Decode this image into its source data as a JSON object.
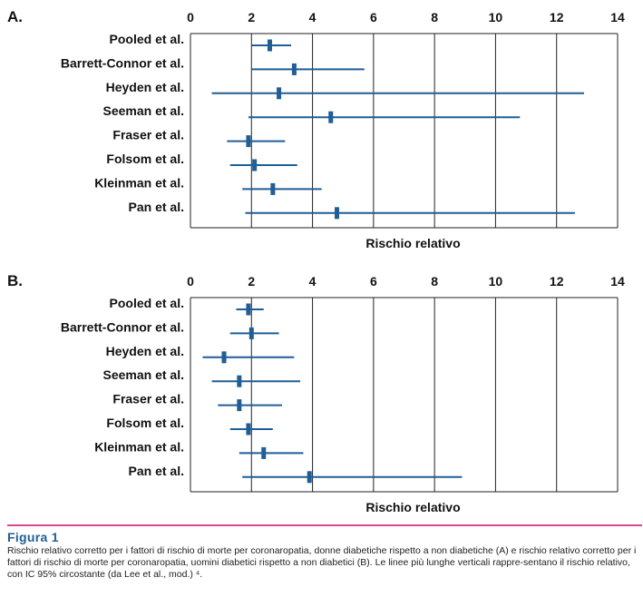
{
  "chart_data": [
    {
      "type": "forest",
      "panel_label": "A.",
      "xlabel": "Rischio relativo",
      "xlim": [
        0,
        14
      ],
      "xticks": [
        0,
        2,
        4,
        6,
        8,
        10,
        12,
        14
      ],
      "studies": [
        {
          "name": "Pooled et al.",
          "rr": 2.6,
          "ci_low": 2.0,
          "ci_high": 3.3
        },
        {
          "name": "Barrett-Connor et al.",
          "rr": 3.4,
          "ci_low": 2.0,
          "ci_high": 5.7
        },
        {
          "name": "Heyden et al.",
          "rr": 2.9,
          "ci_low": 0.7,
          "ci_high": 12.9
        },
        {
          "name": "Seeman et al.",
          "rr": 4.6,
          "ci_low": 1.9,
          "ci_high": 10.8
        },
        {
          "name": "Fraser et al.",
          "rr": 1.9,
          "ci_low": 1.2,
          "ci_high": 3.1
        },
        {
          "name": "Folsom et al.",
          "rr": 2.1,
          "ci_low": 1.3,
          "ci_high": 3.5
        },
        {
          "name": "Kleinman et al.",
          "rr": 2.7,
          "ci_low": 1.7,
          "ci_high": 4.3
        },
        {
          "name": "Pan et al.",
          "rr": 4.8,
          "ci_low": 1.8,
          "ci_high": 12.6
        }
      ]
    },
    {
      "type": "forest",
      "panel_label": "B.",
      "xlabel": "Rischio relativo",
      "xlim": [
        0,
        14
      ],
      "xticks": [
        0,
        2,
        4,
        6,
        8,
        10,
        12,
        14
      ],
      "studies": [
        {
          "name": "Pooled et al.",
          "rr": 1.9,
          "ci_low": 1.5,
          "ci_high": 2.4
        },
        {
          "name": "Barrett-Connor et al.",
          "rr": 2.0,
          "ci_low": 1.3,
          "ci_high": 2.9
        },
        {
          "name": "Heyden et al.",
          "rr": 1.1,
          "ci_low": 0.4,
          "ci_high": 3.4
        },
        {
          "name": "Seeman et al.",
          "rr": 1.6,
          "ci_low": 0.7,
          "ci_high": 3.6
        },
        {
          "name": "Fraser et al.",
          "rr": 1.6,
          "ci_low": 0.9,
          "ci_high": 3.0
        },
        {
          "name": "Folsom et al.",
          "rr": 1.9,
          "ci_low": 1.3,
          "ci_high": 2.7
        },
        {
          "name": "Kleinman et al.",
          "rr": 2.4,
          "ci_low": 1.6,
          "ci_high": 3.7
        },
        {
          "name": "Pan et al.",
          "rr": 3.9,
          "ci_low": 1.7,
          "ci_high": 8.9
        }
      ]
    }
  ],
  "colors": {
    "series": "#1f5e96",
    "gridline": "#222222",
    "caption_rule": "#d64a8a",
    "caption_title": "#1f5e96"
  },
  "caption": {
    "title": "Figura 1",
    "text": "Rischio relativo corretto per i fattori di rischio di morte per coronaropatia, donne diabetiche rispetto a non diabetiche (A) e rischio relativo corretto per i fattori di rischio di morte per coronaropatia, uomini diabetici rispetto a non diabetici (B). Le linee più lunghe verticali rappre-sentano il rischio relativo, con IC 95% circostante (da Lee et al., mod.) ⁴."
  }
}
